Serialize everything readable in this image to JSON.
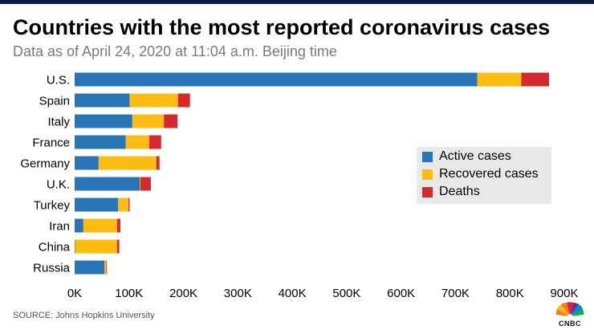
{
  "title": "Countries with the most reported coronavirus cases",
  "subtitle": "Data as of April 24, 2020 at 11:04 a.m. Beijing time",
  "source": "SOURCE: Johns Hopkins University",
  "brand": "CNBC",
  "colors": {
    "active": "#2775b6",
    "recovered": "#fdbc12",
    "deaths": "#d42a2f",
    "topbar": "#0e1b43",
    "legend_bg": "#e9e9e9"
  },
  "chart_data": {
    "type": "bar",
    "orientation": "horizontal",
    "stacked": true,
    "title": "Countries with the most reported coronavirus cases",
    "subtitle": "Data as of April 24, 2020 at 11:04 a.m. Beijing time",
    "xlabel": "",
    "ylabel": "",
    "xlim": [
      0,
      900000
    ],
    "categories": [
      "U.S.",
      "Spain",
      "Italy",
      "France",
      "Germany",
      "U.K.",
      "Turkey",
      "Iran",
      "China",
      "Russia"
    ],
    "series": [
      {
        "name": "Active cases",
        "values": [
          740000,
          101000,
          106000,
          94000,
          44000,
          120000,
          80000,
          16000,
          1000,
          55000
        ]
      },
      {
        "name": "Recovered cases",
        "values": [
          81000,
          89000,
          58000,
          43000,
          106000,
          1000,
          19000,
          62000,
          77000,
          3000
        ]
      },
      {
        "name": "Deaths",
        "values": [
          51000,
          22000,
          25000,
          22000,
          6000,
          19000,
          2000,
          6000,
          4000,
          1000
        ]
      }
    ],
    "xticks": [
      0,
      100000,
      200000,
      300000,
      400000,
      500000,
      600000,
      700000,
      800000,
      900000
    ],
    "xtick_labels": [
      "0K",
      "100K",
      "200K",
      "300K",
      "400K",
      "500K",
      "600K",
      "700K",
      "800K",
      "900K"
    ],
    "legend": [
      "Active cases",
      "Recovered cases",
      "Deaths"
    ],
    "legend_position": "right",
    "grid": false
  }
}
